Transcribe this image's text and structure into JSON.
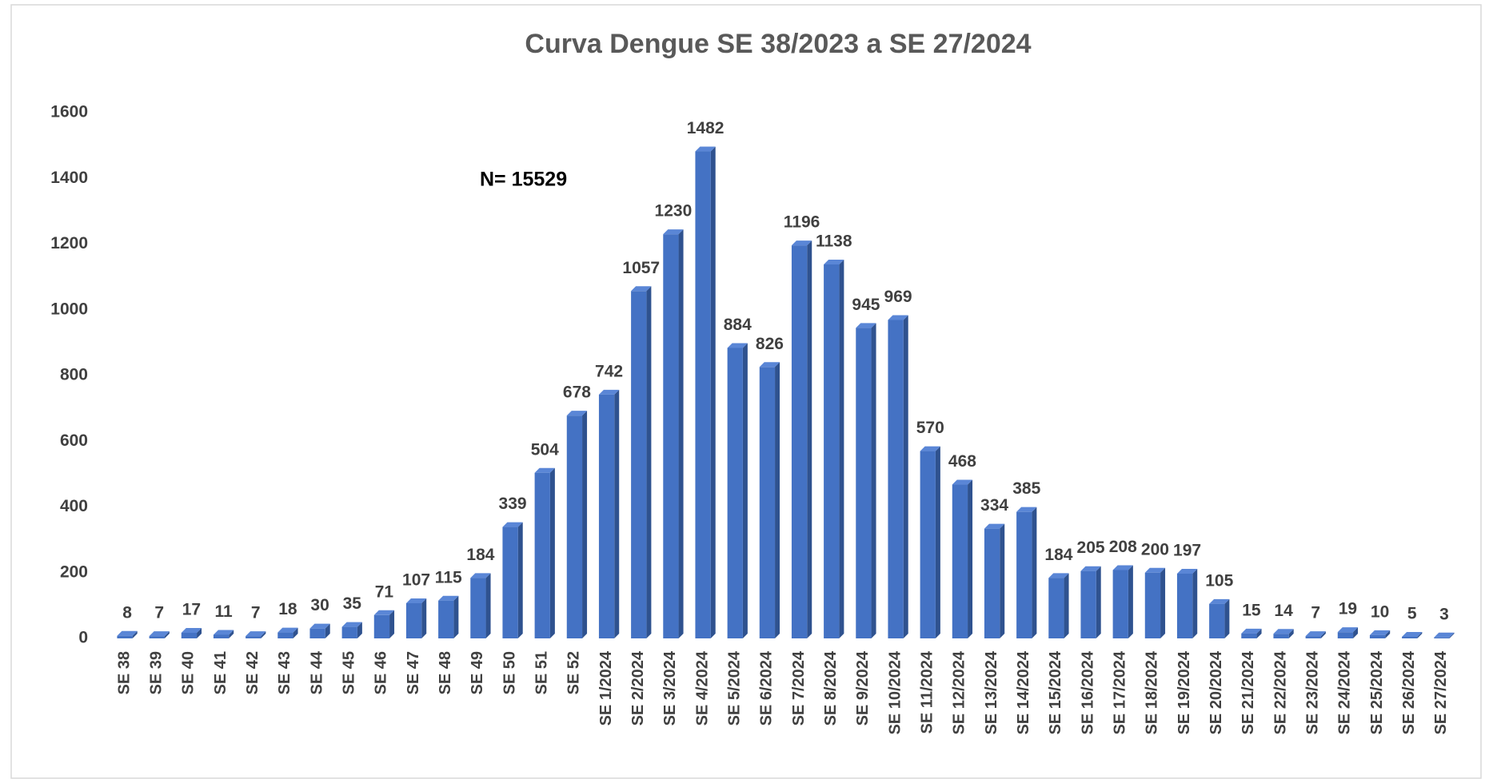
{
  "chart_data": {
    "type": "bar",
    "title": "Curva Dengue SE 38/2023 a SE 27/2024",
    "annotation": "N= 15529",
    "categories": [
      "SE 38",
      "SE 39",
      "SE 40",
      "SE 41",
      "SE 42",
      "SE 43",
      "SE 44",
      "SE 45",
      "SE 46",
      "SE 47",
      "SE 48",
      "SE 49",
      "SE 50",
      "SE 51",
      "SE 52",
      "SE 1/2024",
      "SE 2/2024",
      "SE 3/2024",
      "SE 4/2024",
      "SE 5/2024",
      "SE 6/2024",
      "SE 7/2024",
      "SE 8/2024",
      "SE 9/2024",
      "SE 10/2024",
      "SE 11/2024",
      "SE 12/2024",
      "SE 13/2024",
      "SE 14/2024",
      "SE 15/2024",
      "SE 16/2024",
      "SE 17/2024",
      "SE 18/2024",
      "SE 19/2024",
      "SE 20/2024",
      "SE 21/2024",
      "SE 22/2024",
      "SE 23/2024",
      "SE 24/2024",
      "SE 25/2024",
      "SE 26/2024",
      "SE 27/2024"
    ],
    "values": [
      8,
      7,
      17,
      11,
      7,
      18,
      30,
      35,
      71,
      107,
      115,
      184,
      339,
      504,
      678,
      742,
      1057,
      1230,
      1482,
      884,
      826,
      1196,
      1138,
      945,
      969,
      570,
      468,
      334,
      385,
      184,
      205,
      208,
      200,
      197,
      105,
      15,
      14,
      7,
      19,
      10,
      5,
      3
    ],
    "color": "#4472c4",
    "ylim": [
      0,
      1600
    ],
    "yticks": [
      0,
      200,
      400,
      600,
      800,
      1000,
      1200,
      1400,
      1600
    ],
    "grid": false
  }
}
